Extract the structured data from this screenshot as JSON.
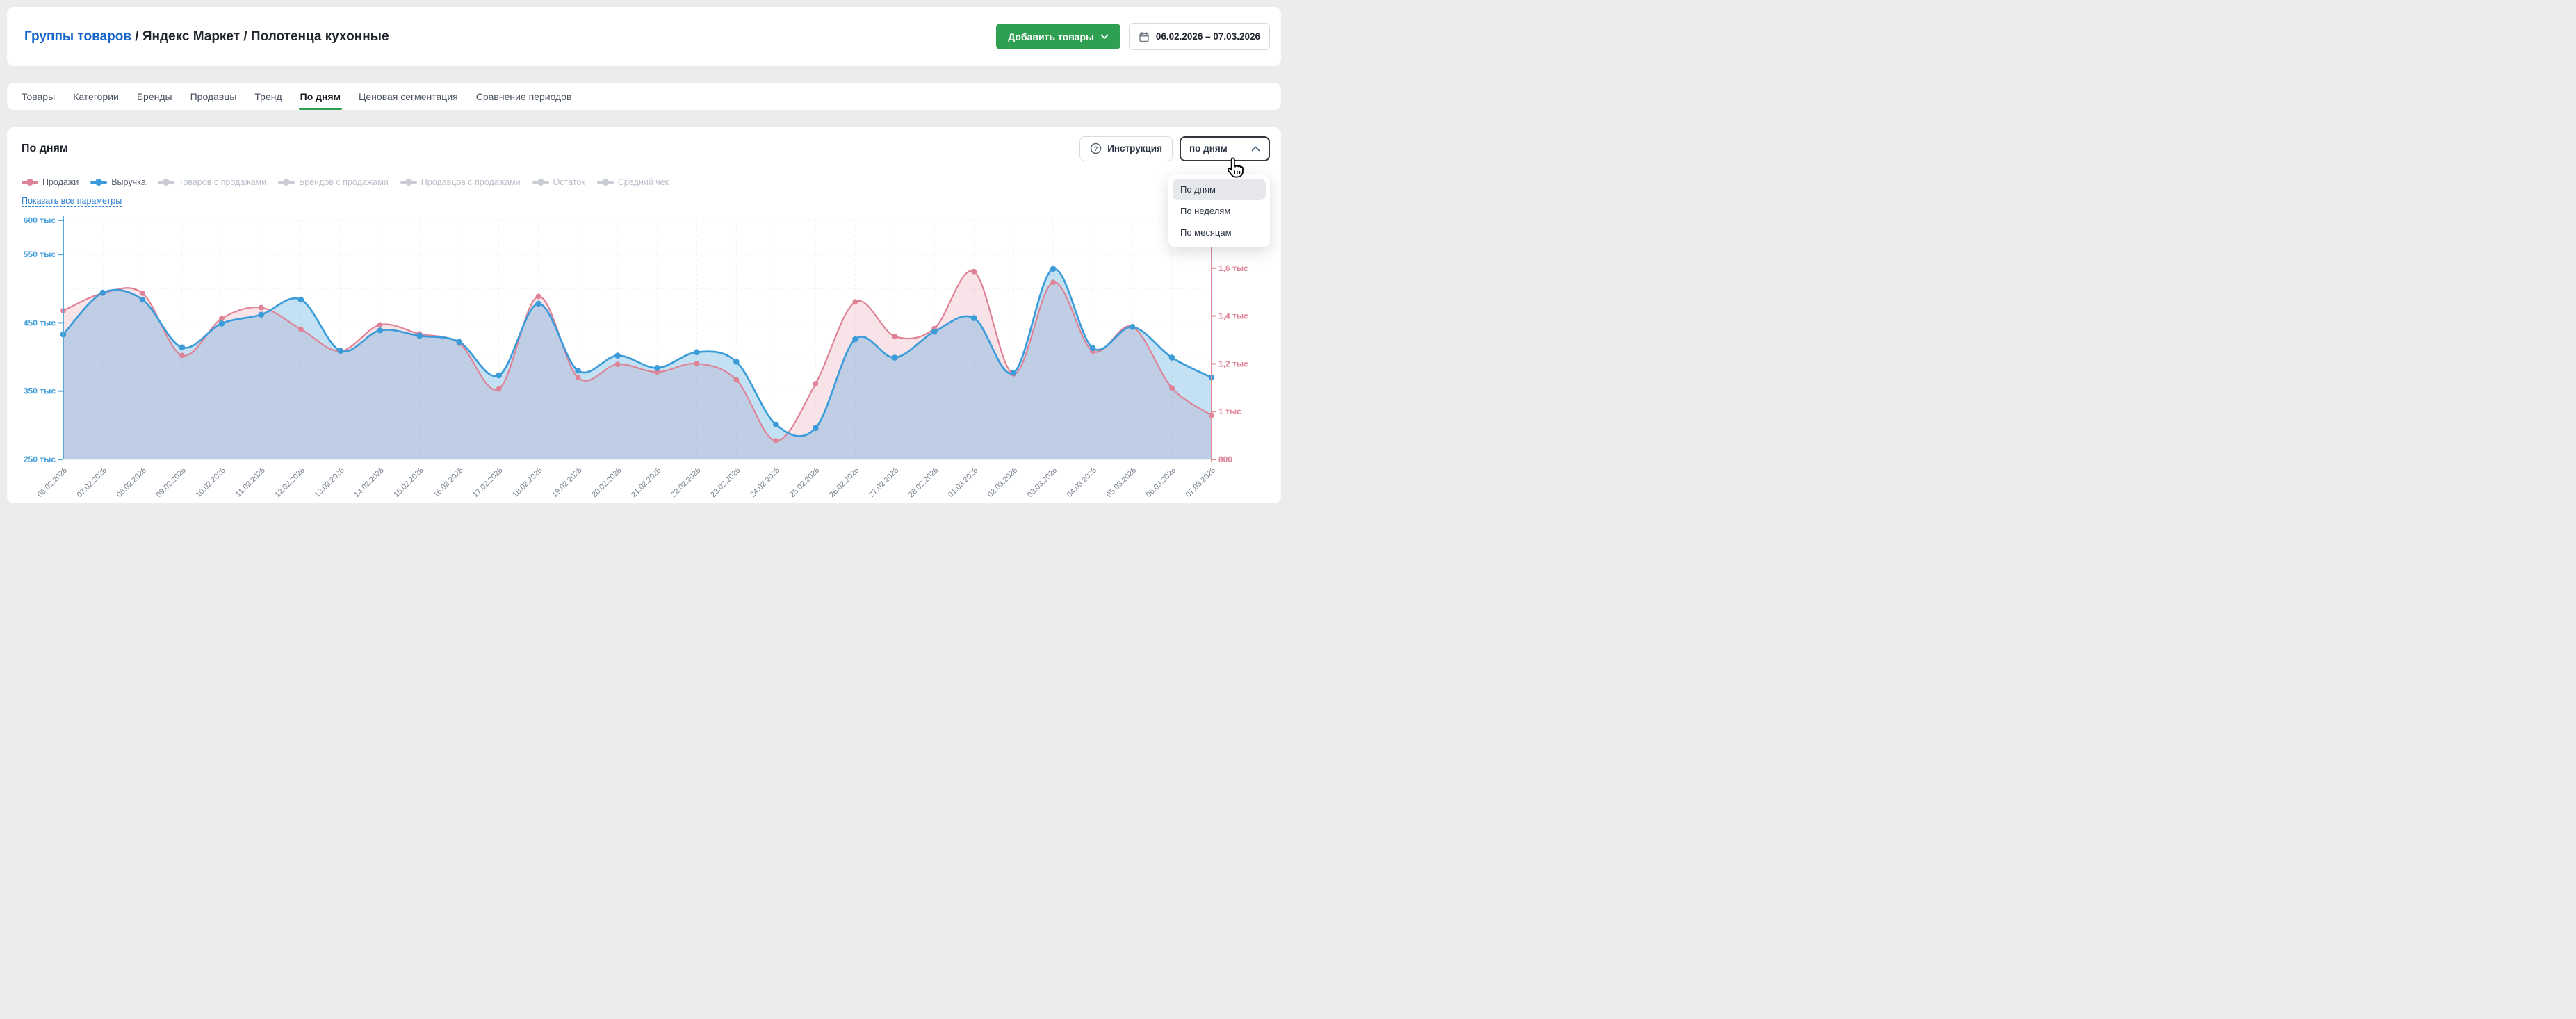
{
  "header": {
    "breadcrumb": {
      "link": "Группы товаров",
      "sep": " / ",
      "marketplace": "Яндекс Маркет",
      "current": "Полотенца кухонные"
    },
    "add_products_label": "Добавить товары",
    "date_range": "06.02.2026 – 07.03.2026"
  },
  "tabs": {
    "items": [
      "Товары",
      "Категории",
      "Бренды",
      "Продавцы",
      "Тренд",
      "По дням",
      "Ценовая сегментация",
      "Сравнение периодов"
    ],
    "active_index": 5
  },
  "panel": {
    "title": "По дням",
    "instruction_label": "Инструкция",
    "granularity_value": "по дням",
    "show_all_label": "Показать все параметры"
  },
  "granularity_menu": {
    "options": [
      "По дням",
      "По неделям",
      "По месяцам"
    ],
    "selected_index": 0
  },
  "legend": {
    "items": [
      {
        "label": "Продажи",
        "color": "#df8296",
        "active": true
      },
      {
        "label": "Выручка",
        "color": "#3b9cd9",
        "active": true
      },
      {
        "label": "Товаров с продажами",
        "color": "#c9cdd3",
        "active": false
      },
      {
        "label": "Брендов с продажами",
        "color": "#c9cdd3",
        "active": false
      },
      {
        "label": "Продавцов с продажами",
        "color": "#c9cdd3",
        "active": false
      },
      {
        "label": "Остаток",
        "color": "#c9cdd3",
        "active": false
      },
      {
        "label": "Средний чек",
        "color": "#c9cdd3",
        "active": false
      }
    ]
  },
  "chart_data": {
    "type": "area",
    "title": "По дням",
    "x_labels": [
      "06.02.2026",
      "07.02.2026",
      "08.02.2026",
      "09.02.2026",
      "10.02.2026",
      "11.02.2026",
      "12.02.2026",
      "13.02.2026",
      "14.02.2026",
      "15.02.2026",
      "16.02.2026",
      "17.02.2026",
      "18.02.2026",
      "19.02.2026",
      "20.02.2026",
      "21.02.2026",
      "22.02.2026",
      "23.02.2026",
      "24.02.2026",
      "25.02.2026",
      "26.02.2026",
      "27.02.2026",
      "28.02.2026",
      "01.03.2026",
      "02.03.2026",
      "03.03.2026",
      "04.03.2026",
      "05.03.2026",
      "06.03.2026",
      "07.03.2026"
    ],
    "series": [
      {
        "name": "Продажи",
        "axis": "right",
        "color": "#df8296",
        "fill": "rgba(223,130,150,0.22)",
        "values": [
          1422,
          1495,
          1495,
          1235,
          1389,
          1435,
          1345,
          1253,
          1363,
          1325,
          1286,
          1095,
          1482,
          1142,
          1198,
          1166,
          1201,
          1133,
          878,
          1117,
          1459,
          1315,
          1348,
          1586,
          1158,
          1541,
          1253,
          1355,
          1099,
          985
        ]
      },
      {
        "name": "Выручка",
        "axis": "left",
        "color": "#3b9cd9",
        "fill": "rgba(59,156,217,0.30)",
        "values": [
          433,
          494,
          484,
          414,
          449,
          462,
          484,
          409,
          439,
          431,
          422,
          373,
          478,
          380,
          402,
          384,
          407,
          393,
          301,
          296,
          426,
          399,
          437,
          457,
          377,
          529,
          413,
          444,
          399,
          370
        ]
      }
    ],
    "left_axis": {
      "min": 250,
      "max": 600,
      "unit": "тыс",
      "color": "#45a0dc",
      "ticks": [
        {
          "value": 600,
          "label": "600 тыс"
        },
        {
          "value": 550,
          "label": "550 тыс"
        },
        {
          "value": 450,
          "label": "450 тыс"
        },
        {
          "value": 350,
          "label": "350 тыс"
        },
        {
          "value": 250,
          "label": "250 тыс"
        }
      ]
    },
    "right_axis": {
      "min": 800,
      "max": 1800,
      "color": "#df8296",
      "ticks": [
        {
          "value": 1600,
          "label": "1,6 тыс"
        },
        {
          "value": 1400,
          "label": "1,4 тыс"
        },
        {
          "value": 1200,
          "label": "1,2 тыс"
        },
        {
          "value": 1000,
          "label": "1 тыс"
        },
        {
          "value": 800,
          "label": "800"
        }
      ]
    },
    "gridline_values": [
      600,
      550,
      500,
      450,
      400,
      350,
      300
    ],
    "grid": true,
    "legend_position": "top-left"
  }
}
